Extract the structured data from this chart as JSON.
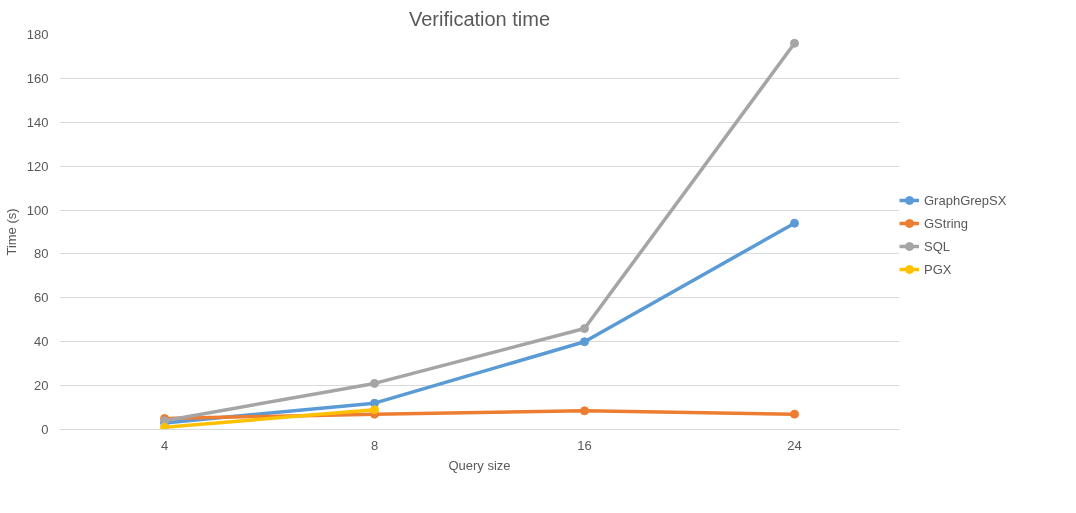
{
  "chart_data": {
    "type": "line",
    "title": "Verification time",
    "xlabel": "Query size",
    "ylabel": "Time (s)",
    "categories": [
      "4",
      "8",
      "16",
      "24"
    ],
    "series": [
      {
        "name": "GraphGrepSX",
        "color": "#5b9bd5",
        "values": [
          3,
          12,
          40,
          94
        ]
      },
      {
        "name": "GString",
        "color": "#ed7d31",
        "values": [
          5,
          7,
          8.5,
          7
        ]
      },
      {
        "name": "SQL",
        "color": "#a5a5a5",
        "values": [
          4,
          21,
          46,
          176
        ]
      },
      {
        "name": "PGX",
        "color": "#ffc000",
        "values": [
          1,
          9,
          null,
          null
        ]
      }
    ],
    "ylim": [
      0,
      180
    ],
    "yticks": [
      0,
      20,
      40,
      60,
      80,
      100,
      120,
      140,
      160,
      180
    ],
    "grid": "y",
    "legend": "right",
    "marker": "circle",
    "line_style": "solid"
  }
}
